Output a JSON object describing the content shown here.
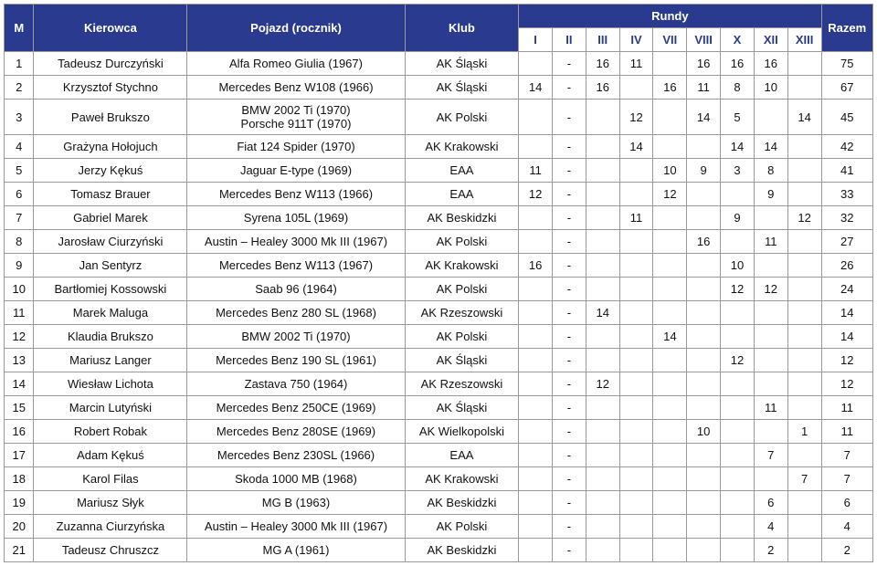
{
  "table": {
    "headers": {
      "m": "M",
      "driver": "Kierowca",
      "car": "Pojazd (rocznik)",
      "club": "Klub",
      "rounds_label": "Rundy",
      "total": "Razem",
      "rounds": [
        "I",
        "II",
        "III",
        "IV",
        "VII",
        "VIII",
        "X",
        "XII",
        "XIII"
      ]
    },
    "columns_widths": {
      "m": 30,
      "driver": 155,
      "car": 220,
      "club": 115,
      "round": 34,
      "total": 52
    },
    "colors": {
      "header_bg": "#2a3b8f",
      "header_fg": "#ffffff",
      "subheader_fg": "#2a3b8f",
      "border": "#999999",
      "body_bg": "#ffffff",
      "text": "#111111"
    },
    "font": {
      "family": "Segoe UI",
      "size": 13,
      "header_weight": 700
    },
    "rows": [
      {
        "m": "1",
        "driver": "Tadeusz Durczyński",
        "car": "Alfa Romeo Giulia (1967)",
        "club": "AK Śląski",
        "r": [
          "",
          "-",
          "16",
          "11",
          "",
          "16",
          "16",
          "16",
          ""
        ],
        "total": "75"
      },
      {
        "m": "2",
        "driver": "Krzysztof Stychno",
        "car": "Mercedes Benz W108 (1966)",
        "club": "AK Śląski",
        "r": [
          "14",
          "-",
          "16",
          "",
          "16",
          "11",
          "8",
          "10",
          ""
        ],
        "total": "67"
      },
      {
        "m": "3",
        "driver": "Paweł Brukszo",
        "car": "BMW 2002 Ti (1970)\nPorsche 911T (1970)",
        "club": "AK Polski",
        "r": [
          "",
          "-",
          "",
          "12",
          "",
          "14",
          "5",
          "",
          "14"
        ],
        "total": "45"
      },
      {
        "m": "4",
        "driver": "Grażyna Hołojuch",
        "car": "Fiat 124 Spider (1970)",
        "club": "AK Krakowski",
        "r": [
          "",
          "-",
          "",
          "14",
          "",
          "",
          "14",
          "14",
          ""
        ],
        "total": "42"
      },
      {
        "m": "5",
        "driver": "Jerzy Kękuś",
        "car": "Jaguar E-type (1969)",
        "club": "EAA",
        "r": [
          "11",
          "-",
          "",
          "",
          "10",
          "9",
          "3",
          "8",
          ""
        ],
        "total": "41"
      },
      {
        "m": "6",
        "driver": "Tomasz Brauer",
        "car": "Mercedes Benz W113 (1966)",
        "club": "EAA",
        "r": [
          "12",
          "-",
          "",
          "",
          "12",
          "",
          "",
          "9",
          ""
        ],
        "total": "33"
      },
      {
        "m": "7",
        "driver": "Gabriel Marek",
        "car": "Syrena 105L (1969)",
        "club": "AK Beskidzki",
        "r": [
          "",
          "-",
          "",
          "11",
          "",
          "",
          "9",
          "",
          "12"
        ],
        "total": "32"
      },
      {
        "m": "8",
        "driver": "Jarosław Ciurzyński",
        "car": "Austin – Healey 3000 Mk III (1967)",
        "club": "AK Polski",
        "r": [
          "",
          "-",
          "",
          "",
          "",
          "16",
          "",
          "11",
          ""
        ],
        "total": "27"
      },
      {
        "m": "9",
        "driver": "Jan Sentyrz",
        "car": "Mercedes Benz W113 (1967)",
        "club": "AK Krakowski",
        "r": [
          "16",
          "-",
          "",
          "",
          "",
          "",
          "10",
          "",
          ""
        ],
        "total": "26"
      },
      {
        "m": "10",
        "driver": "Bartłomiej Kossowski",
        "car": "Saab 96 (1964)",
        "club": "AK Polski",
        "r": [
          "",
          "-",
          "",
          "",
          "",
          "",
          "12",
          "12",
          ""
        ],
        "total": "24"
      },
      {
        "m": "11",
        "driver": "Marek Maluga",
        "car": "Mercedes Benz 280 SL (1968)",
        "club": "AK Rzeszowski",
        "r": [
          "",
          "-",
          "14",
          "",
          "",
          "",
          "",
          "",
          ""
        ],
        "total": "14"
      },
      {
        "m": "12",
        "driver": "Klaudia Brukszo",
        "car": "BMW 2002 Ti (1970)",
        "club": "AK Polski",
        "r": [
          "",
          "-",
          "",
          "",
          "14",
          "",
          "",
          "",
          ""
        ],
        "total": "14"
      },
      {
        "m": "13",
        "driver": "Mariusz Langer",
        "car": "Mercedes Benz 190 SL (1961)",
        "club": "AK Śląski",
        "r": [
          "",
          "-",
          "",
          "",
          "",
          "",
          "12",
          "",
          ""
        ],
        "total": "12"
      },
      {
        "m": "14",
        "driver": "Wiesław Lichota",
        "car": "Zastava 750 (1964)",
        "club": "AK Rzeszowski",
        "r": [
          "",
          "-",
          "12",
          "",
          "",
          "",
          "",
          "",
          ""
        ],
        "total": "12"
      },
      {
        "m": "15",
        "driver": "Marcin Lutyński",
        "car": "Mercedes Benz 250CE (1969)",
        "club": "AK Śląski",
        "r": [
          "",
          "-",
          "",
          "",
          "",
          "",
          "",
          "11",
          ""
        ],
        "total": "11"
      },
      {
        "m": "16",
        "driver": "Robert Robak",
        "car": "Mercedes Benz 280SE (1969)",
        "club": "AK Wielkopolski",
        "r": [
          "",
          "-",
          "",
          "",
          "",
          "10",
          "",
          "",
          "1"
        ],
        "total": "11"
      },
      {
        "m": "17",
        "driver": "Adam Kękuś",
        "car": "Mercedes Benz 230SL (1966)",
        "club": "EAA",
        "r": [
          "",
          "-",
          "",
          "",
          "",
          "",
          "",
          "7",
          ""
        ],
        "total": "7"
      },
      {
        "m": "18",
        "driver": "Karol Filas",
        "car": "Skoda 1000 MB (1968)",
        "club": "AK Krakowski",
        "r": [
          "",
          "-",
          "",
          "",
          "",
          "",
          "",
          "",
          "7"
        ],
        "total": "7"
      },
      {
        "m": "19",
        "driver": "Mariusz Słyk",
        "car": "MG B (1963)",
        "club": "AK Beskidzki",
        "r": [
          "",
          "-",
          "",
          "",
          "",
          "",
          "",
          "6",
          ""
        ],
        "total": "6"
      },
      {
        "m": "20",
        "driver": "Zuzanna Ciurzyńska",
        "car": "Austin – Healey 3000 Mk III (1967)",
        "club": "AK Polski",
        "r": [
          "",
          "-",
          "",
          "",
          "",
          "",
          "",
          "4",
          ""
        ],
        "total": "4"
      },
      {
        "m": "21",
        "driver": "Tadeusz Chruszcz",
        "car": "MG A (1961)",
        "club": "AK Beskidzki",
        "r": [
          "",
          "-",
          "",
          "",
          "",
          "",
          "",
          "2",
          ""
        ],
        "total": "2"
      }
    ]
  }
}
